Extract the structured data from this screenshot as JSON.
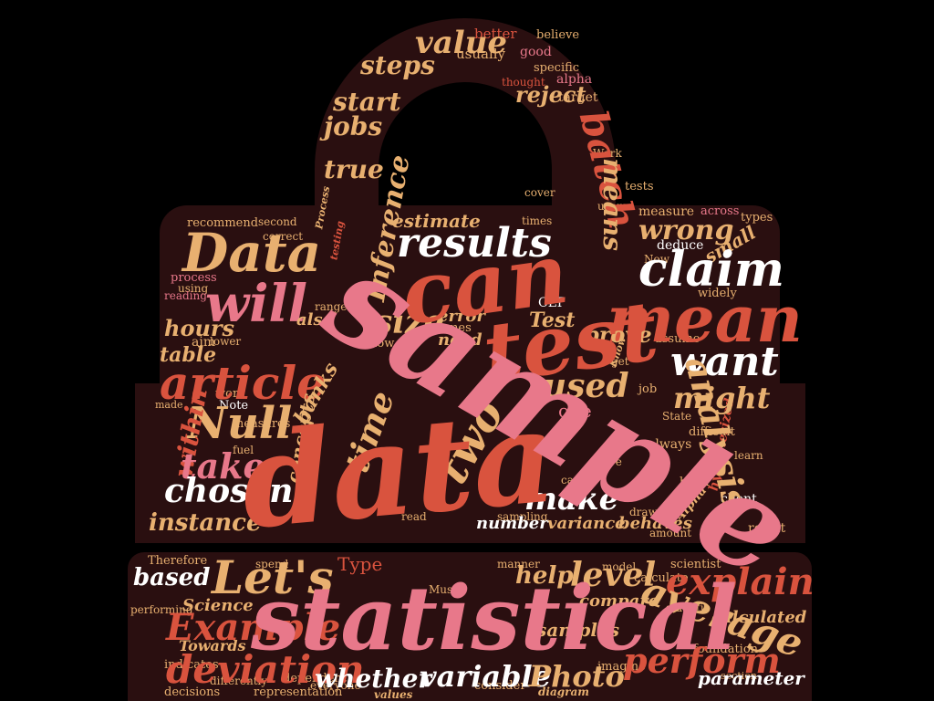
{
  "colors": {
    "background": "#000000",
    "bag": "#2a0f10",
    "pink": "#e8788a",
    "orange_red": "#d9533e",
    "gold": "#e8b070",
    "white": "#ffffff",
    "dark_red": "#8c2b25"
  },
  "words": [
    {
      "text": "sample"
    },
    {
      "text": "data"
    },
    {
      "text": "statistical"
    },
    {
      "text": "test"
    },
    {
      "text": "can"
    },
    {
      "text": "mean"
    },
    {
      "text": "Data"
    },
    {
      "text": "will"
    },
    {
      "text": "article"
    },
    {
      "text": "claim"
    },
    {
      "text": "results"
    },
    {
      "text": "want"
    },
    {
      "text": "Null"
    },
    {
      "text": "two"
    },
    {
      "text": "Let's"
    },
    {
      "text": "average"
    },
    {
      "text": "deviation"
    },
    {
      "text": "Example"
    },
    {
      "text": "explain"
    },
    {
      "text": "perform"
    },
    {
      "text": "whether"
    },
    {
      "text": "variable"
    },
    {
      "text": "Photo"
    },
    {
      "text": "analysis"
    },
    {
      "text": "batch"
    },
    {
      "text": "value"
    },
    {
      "text": "steps"
    },
    {
      "text": "reject"
    },
    {
      "text": "jobs"
    },
    {
      "text": "start"
    },
    {
      "text": "true"
    },
    {
      "text": "Inference"
    },
    {
      "text": "size"
    },
    {
      "text": "time"
    },
    {
      "text": "used"
    },
    {
      "text": "might"
    },
    {
      "text": "take"
    },
    {
      "text": "chosen"
    },
    {
      "text": "make"
    },
    {
      "text": "instance"
    },
    {
      "text": "based"
    },
    {
      "text": "help"
    },
    {
      "text": "level"
    },
    {
      "text": "wrong"
    },
    {
      "text": "estimate"
    },
    {
      "text": "means"
    },
    {
      "text": "prove"
    },
    {
      "text": "hours"
    },
    {
      "text": "table"
    },
    {
      "text": "within"
    },
    {
      "text": "banks"
    },
    {
      "text": "concepts"
    },
    {
      "text": "Test"
    },
    {
      "text": "error"
    },
    {
      "text": "need"
    },
    {
      "text": "also"
    },
    {
      "text": "number"
    },
    {
      "text": "variance"
    },
    {
      "text": "behaves"
    },
    {
      "text": "parameter"
    },
    {
      "text": "samples"
    },
    {
      "text": "compare"
    },
    {
      "text": "calculated"
    },
    {
      "text": "Science"
    },
    {
      "text": "Towards"
    },
    {
      "text": "values"
    },
    {
      "text": "diagram"
    },
    {
      "text": "usually"
    },
    {
      "text": "better"
    },
    {
      "text": "believe"
    },
    {
      "text": "good"
    },
    {
      "text": "specific"
    },
    {
      "text": "alpha"
    },
    {
      "text": "target"
    },
    {
      "text": "thought"
    },
    {
      "text": "measure"
    },
    {
      "text": "across"
    },
    {
      "text": "types"
    },
    {
      "text": "small"
    },
    {
      "text": "deduce"
    },
    {
      "text": "widely"
    },
    {
      "text": "recommend"
    },
    {
      "text": "process"
    },
    {
      "text": "using"
    },
    {
      "text": "reading"
    },
    {
      "text": "aim"
    },
    {
      "text": "assume"
    },
    {
      "text": "job"
    },
    {
      "text": "one"
    },
    {
      "text": "CLT"
    },
    {
      "text": "always"
    },
    {
      "text": "difficult"
    },
    {
      "text": "hypothesized"
    },
    {
      "text": "client"
    },
    {
      "text": "result"
    },
    {
      "text": "Alpha"
    },
    {
      "text": "learn"
    },
    {
      "text": "bank"
    },
    {
      "text": "amount"
    },
    {
      "text": "draw"
    },
    {
      "text": "scientist"
    },
    {
      "text": "model"
    },
    {
      "text": "calculate"
    },
    {
      "text": "foundation"
    },
    {
      "text": "section"
    },
    {
      "text": "imagine"
    },
    {
      "text": "consider"
    },
    {
      "text": "dependent"
    },
    {
      "text": "representation"
    },
    {
      "text": "decisions"
    },
    {
      "text": "indicates"
    },
    {
      "text": "Type"
    },
    {
      "text": "performing"
    },
    {
      "text": "Therefore"
    },
    {
      "text": "measures"
    },
    {
      "text": "work"
    },
    {
      "text": "Note"
    },
    {
      "text": "made"
    },
    {
      "text": "now"
    },
    {
      "text": "comes"
    },
    {
      "text": "lower"
    },
    {
      "text": "cars"
    },
    {
      "text": "five"
    },
    {
      "text": "fuel"
    },
    {
      "text": "users"
    },
    {
      "text": "cover"
    },
    {
      "text": "times"
    },
    {
      "text": "tests"
    },
    {
      "text": "second"
    },
    {
      "text": "correct"
    },
    {
      "text": "sampling"
    },
    {
      "text": "manner"
    },
    {
      "text": "Must"
    },
    {
      "text": "get"
    },
    {
      "text": "spend"
    },
    {
      "text": "read"
    },
    {
      "text": "statistic"
    },
    {
      "text": "everyone"
    },
    {
      "text": "differently"
    },
    {
      "text": "Now"
    },
    {
      "text": "Know"
    },
    {
      "text": "Work"
    },
    {
      "text": "Process"
    },
    {
      "text": "testing"
    },
    {
      "text": "range"
    },
    {
      "text": "State"
    }
  ]
}
